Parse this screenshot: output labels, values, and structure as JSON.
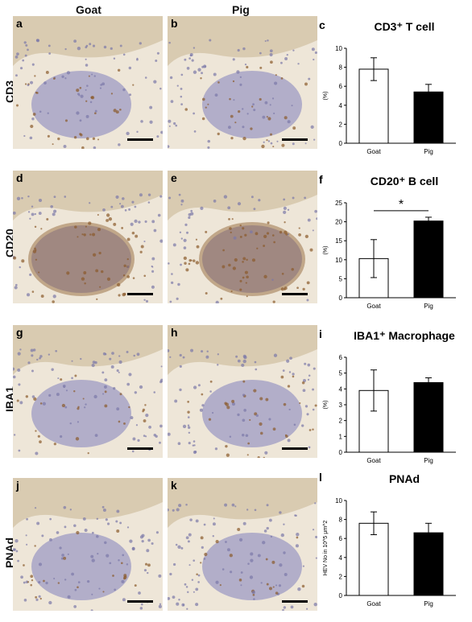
{
  "columns": [
    "Goat",
    "Pig"
  ],
  "rows": [
    {
      "label": "CD3",
      "left": "a",
      "right": "b"
    },
    {
      "label": "CD20",
      "left": "d",
      "right": "e"
    },
    {
      "label": "IBA1",
      "left": "g",
      "right": "h"
    },
    {
      "label": "PNAd",
      "left": "j",
      "right": "k"
    }
  ],
  "tissue_colors": {
    "epithelium": "#d6c8ad",
    "stroma": "#eee6d8",
    "follicle": "#9e9bc4",
    "stain": "#8a5a2b"
  },
  "chart_data": [
    {
      "type": "bar",
      "panel": "c",
      "title": "CD3⁺ T cell",
      "categories": [
        "Goat",
        "Pig"
      ],
      "values": [
        7.8,
        5.4
      ],
      "errors": [
        1.2,
        0.8
      ],
      "ylabel": "(%)",
      "ylim": [
        0,
        10
      ],
      "yticks": [
        0,
        2,
        4,
        6,
        8,
        10
      ],
      "bar_colors": [
        "#ffffff",
        "#000000"
      ],
      "significance": ""
    },
    {
      "type": "bar",
      "panel": "f",
      "title": "CD20⁺ B cell",
      "categories": [
        "Goat",
        "Pig"
      ],
      "values": [
        10.3,
        20.2
      ],
      "errors": [
        5.0,
        1.0
      ],
      "ylabel": "(%)",
      "ylim": [
        0,
        25
      ],
      "yticks": [
        0,
        5,
        10,
        15,
        20,
        25
      ],
      "bar_colors": [
        "#ffffff",
        "#000000"
      ],
      "significance": "*"
    },
    {
      "type": "bar",
      "panel": "i",
      "title": "IBA1⁺ Macrophage",
      "categories": [
        "Goat",
        "Pig"
      ],
      "values": [
        3.9,
        4.4
      ],
      "errors": [
        1.3,
        0.3
      ],
      "ylabel": "(%)",
      "ylim": [
        0,
        6
      ],
      "yticks": [
        0,
        1,
        2,
        3,
        4,
        5,
        6
      ],
      "bar_colors": [
        "#ffffff",
        "#000000"
      ],
      "significance": ""
    },
    {
      "type": "bar",
      "panel": "l",
      "title": "PNAd",
      "categories": [
        "Goat",
        "Pig"
      ],
      "values": [
        7.6,
        6.6
      ],
      "errors": [
        1.2,
        1.0
      ],
      "ylabel": "HEV No in 10^5 μm^2",
      "ylim": [
        0,
        10
      ],
      "yticks": [
        0,
        2,
        4,
        6,
        8,
        10
      ],
      "bar_colors": [
        "#ffffff",
        "#000000"
      ],
      "significance": ""
    }
  ]
}
